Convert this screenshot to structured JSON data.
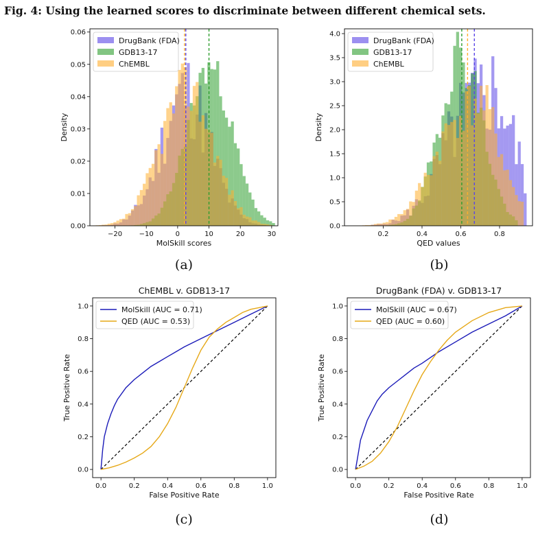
{
  "figure_title": "Fig. 4: Using the learned scores to discriminate between different chemical sets.",
  "subplot_labels": [
    "(a)",
    "(b)",
    "(c)",
    "(d)"
  ],
  "colors": {
    "drugbank": "#5a45e6",
    "gdb": "#2e9e2e",
    "chembl": "#ffae2e",
    "molskill_line": "#1a1ab8",
    "qed_line": "#e6a817",
    "diagonal": "#000000"
  },
  "chart_data": [
    {
      "type": "histogram",
      "id": "a",
      "title": "",
      "xlabel": "MolSkill scores",
      "ylabel": "Density",
      "xlim": [
        -28,
        32
      ],
      "ylim": [
        0,
        0.061
      ],
      "xticks": [
        -20,
        -10,
        0,
        10,
        20,
        30
      ],
      "xtick_labels": [
        "−20",
        "−10",
        "0",
        "10",
        "20",
        "30"
      ],
      "yticks": [
        0,
        0.01,
        0.02,
        0.03,
        0.04,
        0.05,
        0.06
      ],
      "ytick_labels": [
        "0.00",
        "0.01",
        "0.02",
        "0.03",
        "0.04",
        "0.05",
        "0.06"
      ],
      "legend_position": "top-left",
      "series": [
        {
          "name": "DrugBank (FDA)",
          "key": "drugbank",
          "mean": 2.6,
          "sd": 7.8,
          "peak": 0.041,
          "jitter": 0.35,
          "range": [
            -24,
            28
          ],
          "seed": 11
        },
        {
          "name": "GDB13-17",
          "key": "gdb",
          "mean": 10.2,
          "sd": 7.2,
          "peak": 0.049,
          "jitter": 0.12,
          "range": [
            -22,
            31
          ],
          "seed": 23
        },
        {
          "name": "ChEMBL",
          "key": "chembl",
          "mean": 2.9,
          "sd": 8.4,
          "peak": 0.043,
          "jitter": 0.2,
          "range": [
            -27,
            30
          ],
          "seed": 37
        }
      ],
      "vlines": [
        {
          "key": "drugbank",
          "x": 2.6
        },
        {
          "key": "chembl",
          "x": 2.2
        },
        {
          "key": "gdb",
          "x": 10.0
        }
      ]
    },
    {
      "type": "histogram",
      "id": "b",
      "title": "",
      "xlabel": "QED values",
      "ylabel": "Density",
      "xlim": [
        0.0,
        0.97
      ],
      "ylim": [
        0,
        4.1
      ],
      "xticks": [
        0.2,
        0.4,
        0.6,
        0.8
      ],
      "xtick_labels": [
        "0.2",
        "0.4",
        "0.6",
        "0.8"
      ],
      "yticks": [
        0,
        0.5,
        1.0,
        1.5,
        2.0,
        2.5,
        3.0,
        3.5,
        4.0
      ],
      "ytick_labels": [
        "0.0",
        "0.5",
        "1.0",
        "1.5",
        "2.0",
        "2.5",
        "3.0",
        "3.5",
        "4.0"
      ],
      "legend_position": "top-left",
      "series": [
        {
          "name": "DrugBank (FDA)",
          "key": "drugbank",
          "mean": 0.69,
          "sd": 0.17,
          "peak": 2.6,
          "jitter": 0.4,
          "range": [
            0.13,
            0.94
          ],
          "seed": 5,
          "skew": -1
        },
        {
          "name": "GDB13-17",
          "key": "gdb",
          "mean": 0.6,
          "sd": 0.11,
          "peak": 3.6,
          "jitter": 0.18,
          "range": [
            0.2,
            0.9
          ],
          "seed": 19
        },
        {
          "name": "ChEMBL",
          "key": "chembl",
          "mean": 0.63,
          "sd": 0.16,
          "peak": 2.4,
          "jitter": 0.22,
          "range": [
            0.05,
            0.93
          ],
          "seed": 41,
          "skew": -1
        }
      ],
      "vlines": [
        {
          "key": "gdb",
          "x": 0.605
        },
        {
          "key": "chembl",
          "x": 0.635
        },
        {
          "key": "drugbank",
          "x": 0.67
        }
      ]
    },
    {
      "type": "line",
      "id": "c",
      "title": "ChEMBL v. GDB13-17",
      "xlabel": "False Positive Rate",
      "ylabel": "True Positive Rate",
      "xlim": [
        -0.05,
        1.05
      ],
      "ylim": [
        -0.05,
        1.05
      ],
      "xticks": [
        0,
        0.2,
        0.4,
        0.6,
        0.8,
        1.0
      ],
      "xtick_labels": [
        "0.0",
        "0.2",
        "0.4",
        "0.6",
        "0.8",
        "1.0"
      ],
      "yticks": [
        0,
        0.2,
        0.4,
        0.6,
        0.8,
        1.0
      ],
      "ytick_labels": [
        "0.0",
        "0.2",
        "0.4",
        "0.6",
        "0.8",
        "1.0"
      ],
      "legend_position": "top-left",
      "series": [
        {
          "name": "MolSkill (AUC = 0.71)",
          "key": "molskill_line",
          "x": [
            0,
            0.01,
            0.02,
            0.04,
            0.06,
            0.08,
            0.1,
            0.15,
            0.2,
            0.25,
            0.3,
            0.35,
            0.4,
            0.45,
            0.5,
            0.6,
            0.7,
            0.8,
            0.9,
            1.0
          ],
          "y": [
            0,
            0.12,
            0.2,
            0.28,
            0.34,
            0.39,
            0.43,
            0.5,
            0.55,
            0.59,
            0.63,
            0.66,
            0.69,
            0.72,
            0.75,
            0.8,
            0.85,
            0.9,
            0.95,
            1.0
          ]
        },
        {
          "name": "QED (AUC = 0.53)",
          "key": "qed_line",
          "x": [
            0,
            0.05,
            0.1,
            0.15,
            0.2,
            0.25,
            0.3,
            0.35,
            0.4,
            0.45,
            0.5,
            0.55,
            0.6,
            0.65,
            0.7,
            0.75,
            0.8,
            0.85,
            0.9,
            0.95,
            1.0
          ],
          "y": [
            0,
            0.01,
            0.025,
            0.045,
            0.07,
            0.1,
            0.14,
            0.2,
            0.28,
            0.38,
            0.5,
            0.62,
            0.73,
            0.81,
            0.86,
            0.9,
            0.93,
            0.96,
            0.98,
            0.99,
            1.0
          ]
        }
      ]
    },
    {
      "type": "line",
      "id": "d",
      "title": "DrugBank (FDA) v. GDB13-17",
      "xlabel": "False Positive Rate",
      "ylabel": "True Positive Rate",
      "xlim": [
        -0.05,
        1.05
      ],
      "ylim": [
        -0.05,
        1.05
      ],
      "xticks": [
        0,
        0.2,
        0.4,
        0.6,
        0.8,
        1.0
      ],
      "xtick_labels": [
        "0.0",
        "0.2",
        "0.4",
        "0.6",
        "0.8",
        "1.0"
      ],
      "yticks": [
        0,
        0.2,
        0.4,
        0.6,
        0.8,
        1.0
      ],
      "ytick_labels": [
        "0.0",
        "0.2",
        "0.4",
        "0.6",
        "0.8",
        "1.0"
      ],
      "legend_position": "top-left",
      "series": [
        {
          "name": "MolSkill (AUC = 0.67)",
          "key": "molskill_line",
          "x": [
            0,
            0.01,
            0.02,
            0.03,
            0.05,
            0.07,
            0.1,
            0.13,
            0.16,
            0.2,
            0.25,
            0.3,
            0.35,
            0.4,
            0.5,
            0.6,
            0.7,
            0.8,
            0.9,
            1.0
          ],
          "y": [
            0,
            0.06,
            0.12,
            0.18,
            0.24,
            0.3,
            0.36,
            0.42,
            0.46,
            0.5,
            0.54,
            0.58,
            0.62,
            0.65,
            0.72,
            0.78,
            0.84,
            0.89,
            0.94,
            1.0
          ]
        },
        {
          "name": "QED (AUC = 0.60)",
          "key": "qed_line",
          "x": [
            0,
            0.05,
            0.1,
            0.15,
            0.2,
            0.25,
            0.3,
            0.35,
            0.4,
            0.45,
            0.5,
            0.55,
            0.6,
            0.7,
            0.8,
            0.9,
            1.0
          ],
          "y": [
            0,
            0.02,
            0.05,
            0.1,
            0.17,
            0.26,
            0.37,
            0.48,
            0.58,
            0.66,
            0.73,
            0.79,
            0.84,
            0.91,
            0.96,
            0.99,
            1.0
          ]
        }
      ]
    }
  ]
}
